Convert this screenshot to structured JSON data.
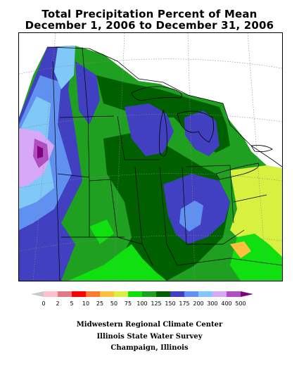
{
  "title": {
    "line1": "Total Precipitation Percent of Mean",
    "line2": "December 1, 2006 to December 31, 2006"
  },
  "legend": {
    "labels": [
      "0",
      "2",
      "5",
      "10",
      "25",
      "50",
      "75",
      "100",
      "125",
      "150",
      "175",
      "200",
      "300",
      "400",
      "500"
    ],
    "colors": [
      "#c8c8c8",
      "#ffc0cb",
      "#e07a80",
      "#ff0000",
      "#ff7a30",
      "#ffc040",
      "#d8f040",
      "#10e010",
      "#20a020",
      "#006000",
      "#4040c0",
      "#6090f0",
      "#80c8f8",
      "#d8a8f8",
      "#b050c0",
      "#800080"
    ]
  },
  "credits": {
    "line1": "Midwestern Regional Climate Center",
    "line2": "Illinois State Water Survey",
    "line3": "Champaign, Illinois"
  },
  "map_colors": {
    "c75": "#d8f040",
    "c100": "#10e010",
    "c125": "#20a020",
    "c150": "#006000",
    "c175": "#4040c0",
    "c200": "#6090f0",
    "c300": "#80c8f8",
    "c400": "#d8a8f8",
    "c500": "#b050c0",
    "cmax": "#800080",
    "c50": "#ffc040"
  }
}
